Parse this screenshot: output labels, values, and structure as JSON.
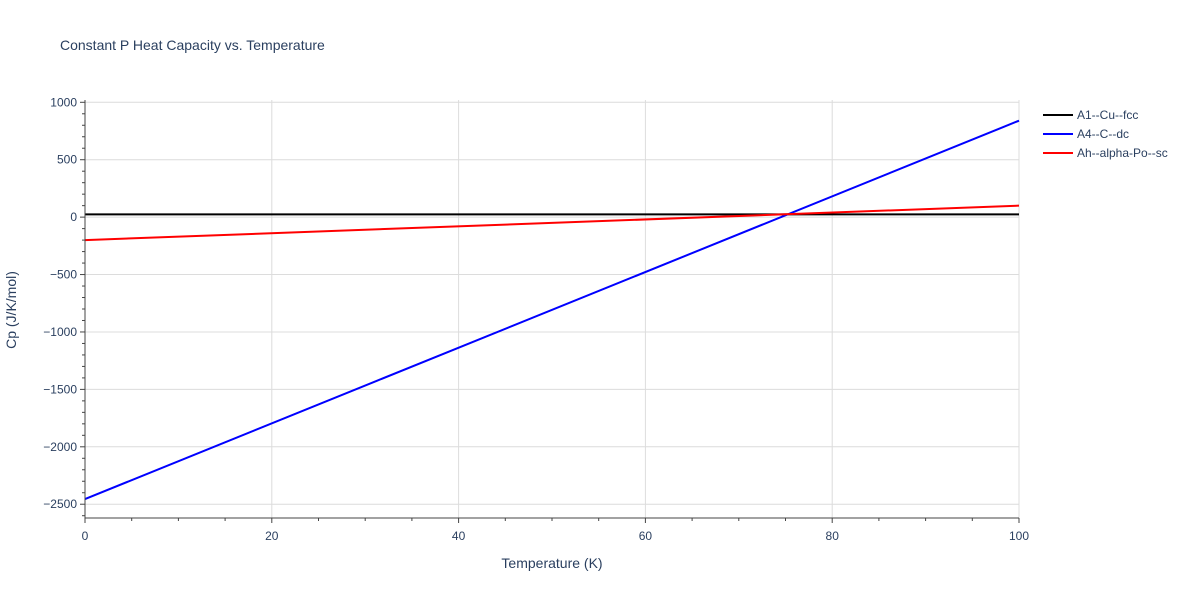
{
  "chart_data": {
    "type": "line",
    "title": "Constant P Heat Capacity vs. Temperature",
    "xlabel": "Temperature (K)",
    "ylabel": "Cp (J/K/mol)",
    "xlim": [
      0,
      100
    ],
    "ylim": [
      -2620,
      1020
    ],
    "x_ticks": [
      0,
      20,
      40,
      60,
      80,
      100
    ],
    "y_ticks": [
      1000,
      500,
      0,
      -500,
      -1000,
      -1500,
      -2000,
      -2500
    ],
    "y_tick_labels": [
      "1000",
      "500",
      "0",
      "−500",
      "−1000",
      "−1500",
      "−2000",
      "−2500"
    ],
    "grid": true,
    "legend_position": "top-right",
    "series": [
      {
        "name": "A1--Cu--fcc",
        "color": "#000000",
        "x": [
          0,
          100
        ],
        "y": [
          24.5,
          24.5
        ]
      },
      {
        "name": "A4--C--dc",
        "color": "#0000ff",
        "x": [
          0,
          100
        ],
        "y": [
          -2455,
          840
        ]
      },
      {
        "name": "Ah--alpha-Po--sc",
        "color": "#ff0000",
        "x": [
          0,
          100
        ],
        "y": [
          -200,
          100
        ]
      }
    ]
  }
}
